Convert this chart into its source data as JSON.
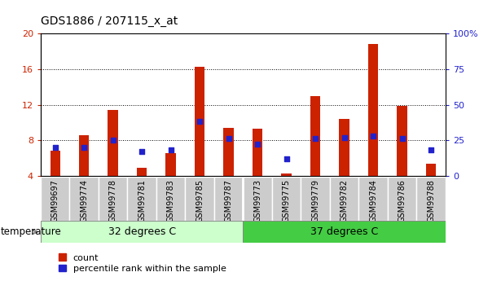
{
  "title": "GDS1886 / 207115_x_at",
  "samples": [
    "GSM99697",
    "GSM99774",
    "GSM99778",
    "GSM99781",
    "GSM99783",
    "GSM99785",
    "GSM99787",
    "GSM99773",
    "GSM99775",
    "GSM99779",
    "GSM99782",
    "GSM99784",
    "GSM99786",
    "GSM99788"
  ],
  "counts": [
    6.8,
    8.6,
    11.4,
    4.9,
    6.5,
    16.3,
    9.4,
    9.3,
    4.2,
    13.0,
    10.4,
    18.8,
    11.9,
    5.3
  ],
  "percentile_ranks_pct": [
    20,
    20,
    25,
    17,
    18,
    38,
    26,
    22,
    12,
    26,
    27,
    28,
    26,
    18
  ],
  "ymin": 4,
  "ymax": 20,
  "yticks": [
    4,
    8,
    12,
    16,
    20
  ],
  "ytick_labels_left": [
    "4",
    "8",
    "12",
    "16",
    "20"
  ],
  "right_yticks": [
    0,
    25,
    50,
    75,
    100
  ],
  "right_ytick_labels": [
    "0",
    "25",
    "50",
    "75",
    "100%"
  ],
  "group1_label": "32 degrees C",
  "group2_label": "37 degrees C",
  "group1_count": 7,
  "group2_count": 7,
  "bar_color": "#cc2200",
  "dot_color": "#2222cc",
  "group1_bg": "#ccffcc",
  "group2_bg": "#44cc44",
  "bar_width": 0.35,
  "tick_bg": "#cccccc",
  "legend_labels": [
    "count",
    "percentile rank within the sample"
  ]
}
